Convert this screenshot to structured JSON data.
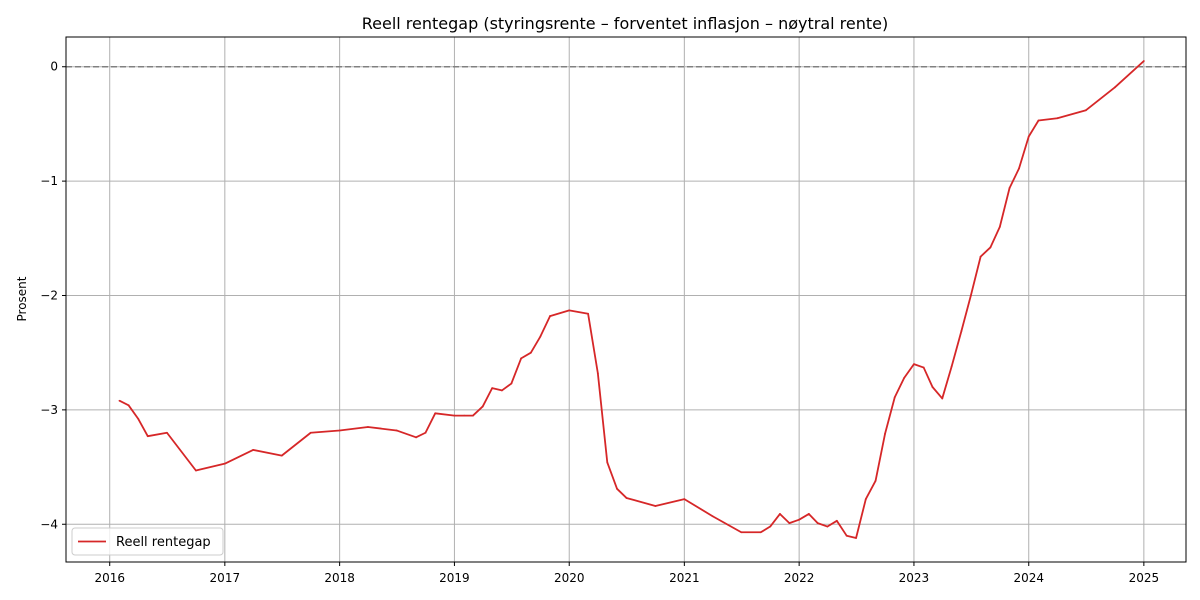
{
  "chart_data": {
    "type": "line",
    "title": "Reell rentegap (styringsrente – forventet inflasjon – nøytral rente)",
    "xlabel": "",
    "ylabel": "Prosent",
    "x_ticks": [
      "2016",
      "2017",
      "2018",
      "2019",
      "2020",
      "2021",
      "2022",
      "2023",
      "2024",
      "2025"
    ],
    "y_ticks": [
      "0",
      "−1",
      "−2",
      "−3",
      "−4"
    ],
    "xlim": [
      "2015-08-15",
      "2025-05-15"
    ],
    "ylim": [
      -4.33,
      0.26
    ],
    "grid": true,
    "legend_position": "lower-left",
    "reference_line": {
      "y": 0,
      "style": "dashed",
      "color": "#808080"
    },
    "series": [
      {
        "name": "Reell rentegap",
        "color": "#d62728",
        "points": [
          [
            "2016-02-01",
            -2.92
          ],
          [
            "2016-03-01",
            -2.96
          ],
          [
            "2016-04-01",
            -3.08
          ],
          [
            "2016-05-01",
            -3.23
          ],
          [
            "2016-07-01",
            -3.2
          ],
          [
            "2016-10-01",
            -3.53
          ],
          [
            "2017-01-01",
            -3.47
          ],
          [
            "2017-04-01",
            -3.35
          ],
          [
            "2017-07-01",
            -3.4
          ],
          [
            "2017-10-01",
            -3.2
          ],
          [
            "2018-01-01",
            -3.18
          ],
          [
            "2018-04-01",
            -3.15
          ],
          [
            "2018-07-01",
            -3.18
          ],
          [
            "2018-09-01",
            -3.24
          ],
          [
            "2018-10-01",
            -3.2
          ],
          [
            "2018-11-01",
            -3.03
          ],
          [
            "2019-01-01",
            -3.05
          ],
          [
            "2019-02-01",
            -3.05
          ],
          [
            "2019-03-01",
            -3.05
          ],
          [
            "2019-04-01",
            -2.97
          ],
          [
            "2019-05-01",
            -2.81
          ],
          [
            "2019-06-01",
            -2.83
          ],
          [
            "2019-07-01",
            -2.77
          ],
          [
            "2019-08-01",
            -2.55
          ],
          [
            "2019-09-01",
            -2.5
          ],
          [
            "2019-10-01",
            -2.36
          ],
          [
            "2019-11-01",
            -2.18
          ],
          [
            "2020-01-01",
            -2.13
          ],
          [
            "2020-03-01",
            -2.16
          ],
          [
            "2020-04-01",
            -2.68
          ],
          [
            "2020-05-01",
            -3.46
          ],
          [
            "2020-06-01",
            -3.69
          ],
          [
            "2020-07-01",
            -3.77
          ],
          [
            "2020-10-01",
            -3.84
          ],
          [
            "2021-01-01",
            -3.78
          ],
          [
            "2021-04-01",
            -3.93
          ],
          [
            "2021-07-01",
            -4.07
          ],
          [
            "2021-09-01",
            -4.07
          ],
          [
            "2021-10-01",
            -4.02
          ],
          [
            "2021-11-01",
            -3.91
          ],
          [
            "2021-12-01",
            -3.99
          ],
          [
            "2022-01-01",
            -3.96
          ],
          [
            "2022-02-01",
            -3.91
          ],
          [
            "2022-03-01",
            -3.99
          ],
          [
            "2022-04-01",
            -4.02
          ],
          [
            "2022-05-01",
            -3.97
          ],
          [
            "2022-06-01",
            -4.1
          ],
          [
            "2022-07-01",
            -4.12
          ],
          [
            "2022-08-01",
            -3.78
          ],
          [
            "2022-09-01",
            -3.62
          ],
          [
            "2022-10-01",
            -3.21
          ],
          [
            "2022-11-01",
            -2.89
          ],
          [
            "2022-12-01",
            -2.72
          ],
          [
            "2023-01-01",
            -2.6
          ],
          [
            "2023-02-01",
            -2.63
          ],
          [
            "2023-03-01",
            -2.8
          ],
          [
            "2023-04-01",
            -2.9
          ],
          [
            "2023-05-01",
            -2.62
          ],
          [
            "2023-06-01",
            -2.31
          ],
          [
            "2023-07-01",
            -2.0
          ],
          [
            "2023-08-01",
            -1.66
          ],
          [
            "2023-09-01",
            -1.58
          ],
          [
            "2023-10-01",
            -1.4
          ],
          [
            "2023-11-01",
            -1.06
          ],
          [
            "2023-12-01",
            -0.89
          ],
          [
            "2024-01-01",
            -0.61
          ],
          [
            "2024-02-01",
            -0.47
          ],
          [
            "2024-04-01",
            -0.45
          ],
          [
            "2024-07-01",
            -0.38
          ],
          [
            "2024-10-01",
            -0.18
          ],
          [
            "2025-01-01",
            0.05
          ]
        ]
      }
    ]
  }
}
